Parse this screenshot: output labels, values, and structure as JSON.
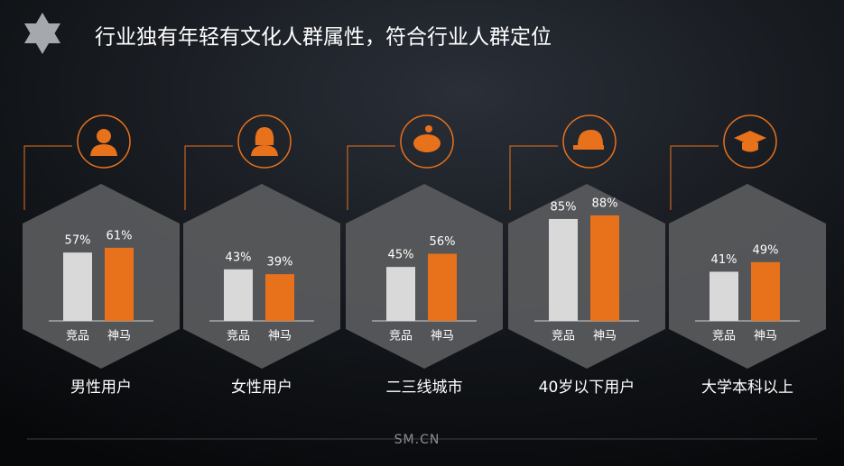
{
  "title": "行业独有年轻有文化人群属性，符合行业人群定位",
  "footer": "SM.CN",
  "chart_data": [
    {
      "type": "bar",
      "title": "男性用户",
      "categories": [
        "竞品",
        "神马"
      ],
      "values": [
        57,
        61
      ],
      "value_labels": [
        "57%",
        "61%"
      ],
      "colors": [
        "#d9d9d9",
        "#e8711c"
      ]
    },
    {
      "type": "bar",
      "title": "女性用户",
      "categories": [
        "竞品",
        "神马"
      ],
      "values": [
        43,
        39
      ],
      "value_labels": [
        "43%",
        "39%"
      ],
      "colors": [
        "#d9d9d9",
        "#e8711c"
      ]
    },
    {
      "type": "bar",
      "title": "二三线城市",
      "categories": [
        "竞品",
        "神马"
      ],
      "values": [
        45,
        56
      ],
      "value_labels": [
        "45%",
        "56%"
      ],
      "colors": [
        "#d9d9d9",
        "#e8711c"
      ]
    },
    {
      "type": "bar",
      "title": "40岁以下用户",
      "categories": [
        "竞品",
        "神马"
      ],
      "values": [
        85,
        88
      ],
      "value_labels": [
        "85%",
        "88%"
      ],
      "colors": [
        "#d9d9d9",
        "#e8711c"
      ]
    },
    {
      "type": "bar",
      "title": "大学本科以上",
      "categories": [
        "竞品",
        "神马"
      ],
      "values": [
        41,
        49
      ],
      "value_labels": [
        "41%",
        "49%"
      ],
      "colors": [
        "#d9d9d9",
        "#e8711c"
      ]
    }
  ]
}
